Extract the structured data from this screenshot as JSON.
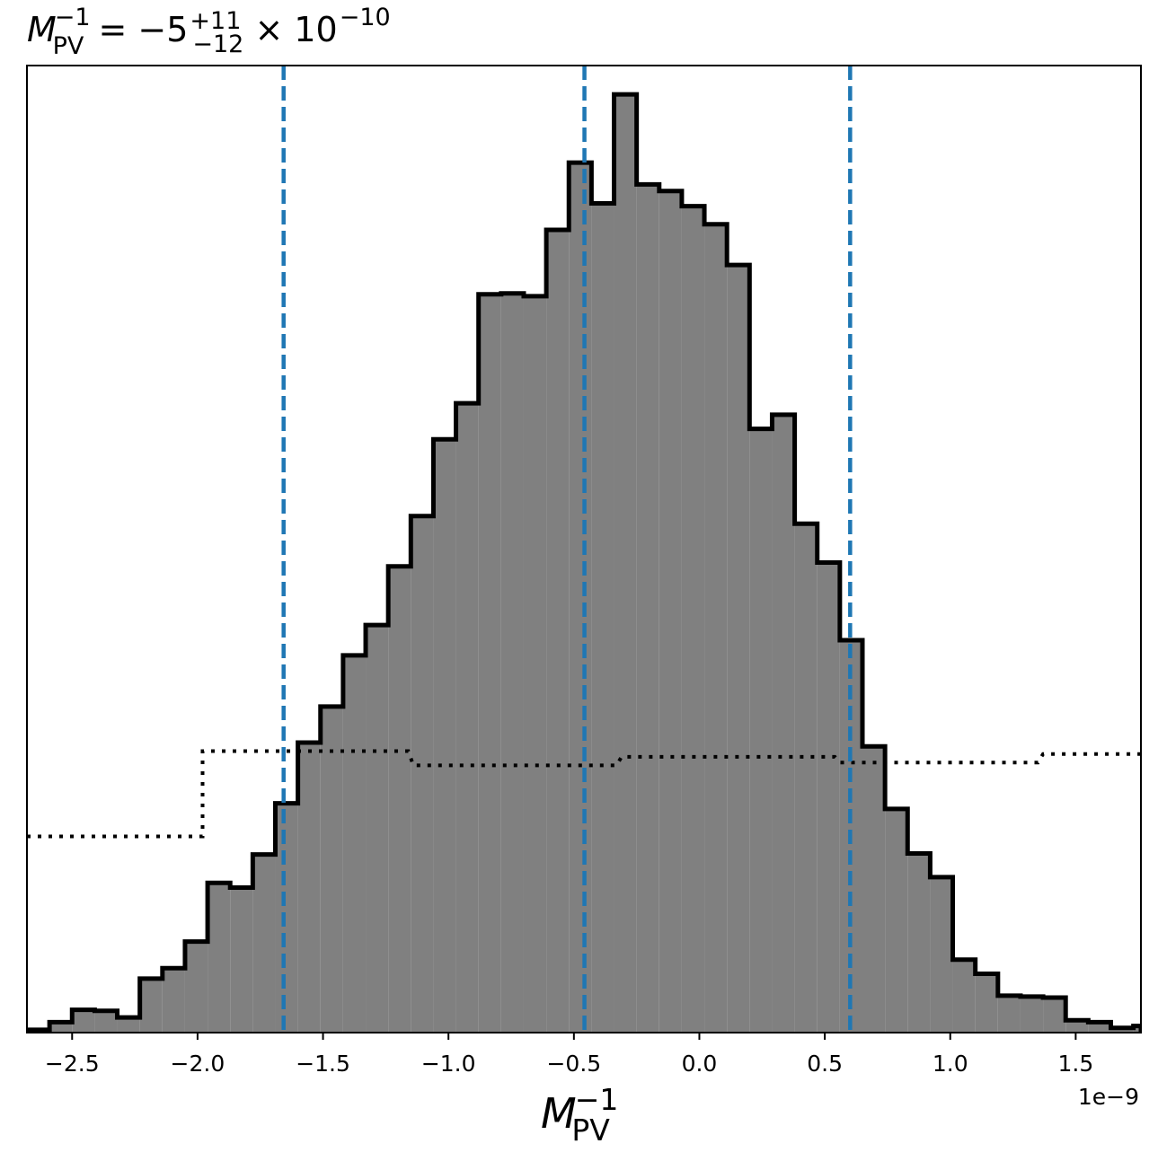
{
  "chart_data": {
    "type": "histogram",
    "title": {
      "symbol": "M",
      "sup": "−1",
      "sub": "PV",
      "equals": " = −5",
      "err_plus": "+11",
      "err_minus": "−12",
      "times": " × 10",
      "exp": "−10"
    },
    "xlabel": {
      "symbol": "M",
      "sup": "−1",
      "sub": "PV"
    },
    "ylabel": "",
    "offset_label": "1e−9",
    "xlim": [
      -2.68,
      1.76
    ],
    "ylim": [
      0,
      1.0
    ],
    "x_ticks": [
      {
        "value": -2.5,
        "label": "−2.5"
      },
      {
        "value": -2.0,
        "label": "−2.0"
      },
      {
        "value": -1.5,
        "label": "−1.5"
      },
      {
        "value": -1.0,
        "label": "−1.0"
      },
      {
        "value": -0.5,
        "label": "−0.5"
      },
      {
        "value": 0.0,
        "label": "0.0"
      },
      {
        "value": 0.5,
        "label": "0.5"
      },
      {
        "value": 1.0,
        "label": "1.0"
      },
      {
        "value": 1.5,
        "label": "1.5"
      }
    ],
    "histogram": {
      "fill_color": "#808080",
      "edge_color": "#000000",
      "bin_edges": [
        -2.68,
        -2.59,
        -2.5,
        -2.41,
        -2.32,
        -2.23,
        -2.14,
        -2.05,
        -1.96,
        -1.87,
        -1.78,
        -1.69,
        -1.6,
        -1.51,
        -1.42,
        -1.33,
        -1.24,
        -1.15,
        -1.06,
        -0.97,
        -0.88,
        -0.79,
        -0.7,
        -0.61,
        -0.52,
        -0.43,
        -0.34,
        -0.25,
        -0.16,
        -0.07,
        0.02,
        0.11,
        0.2,
        0.29,
        0.38,
        0.47,
        0.56,
        0.65,
        0.74,
        0.83,
        0.92,
        1.01,
        1.1,
        1.19,
        1.28,
        1.37,
        1.46,
        1.55,
        1.64,
        1.73,
        1.76
      ],
      "values": [
        0.003,
        0.011,
        0.024,
        0.023,
        0.016,
        0.057,
        0.068,
        0.096,
        0.158,
        0.153,
        0.188,
        0.242,
        0.306,
        0.344,
        0.398,
        0.43,
        0.492,
        0.545,
        0.626,
        0.664,
        0.779,
        0.78,
        0.777,
        0.847,
        0.918,
        0.875,
        0.99,
        0.895,
        0.888,
        0.872,
        0.853,
        0.81,
        0.637,
        0.652,
        0.537,
        0.496,
        0.414,
        0.302,
        0.236,
        0.189,
        0.164,
        0.077,
        0.062,
        0.039,
        0.038,
        0.037,
        0.013,
        0.011,
        0.005,
        0.007
      ]
    },
    "prior": {
      "style": "dotted",
      "color": "#000000",
      "x": [
        -2.68,
        -1.98,
        -1.98,
        -1.16,
        -1.14,
        -0.33,
        -0.31,
        0.54,
        0.56,
        1.35,
        1.37,
        1.76
      ],
      "y": [
        0.207,
        0.207,
        0.297,
        0.297,
        0.282,
        0.282,
        0.291,
        0.291,
        0.285,
        0.285,
        0.294,
        0.294
      ]
    },
    "vlines": {
      "style": "dashed",
      "color": "#1f77b4",
      "x": [
        -1.657,
        -0.458,
        0.601
      ]
    }
  }
}
